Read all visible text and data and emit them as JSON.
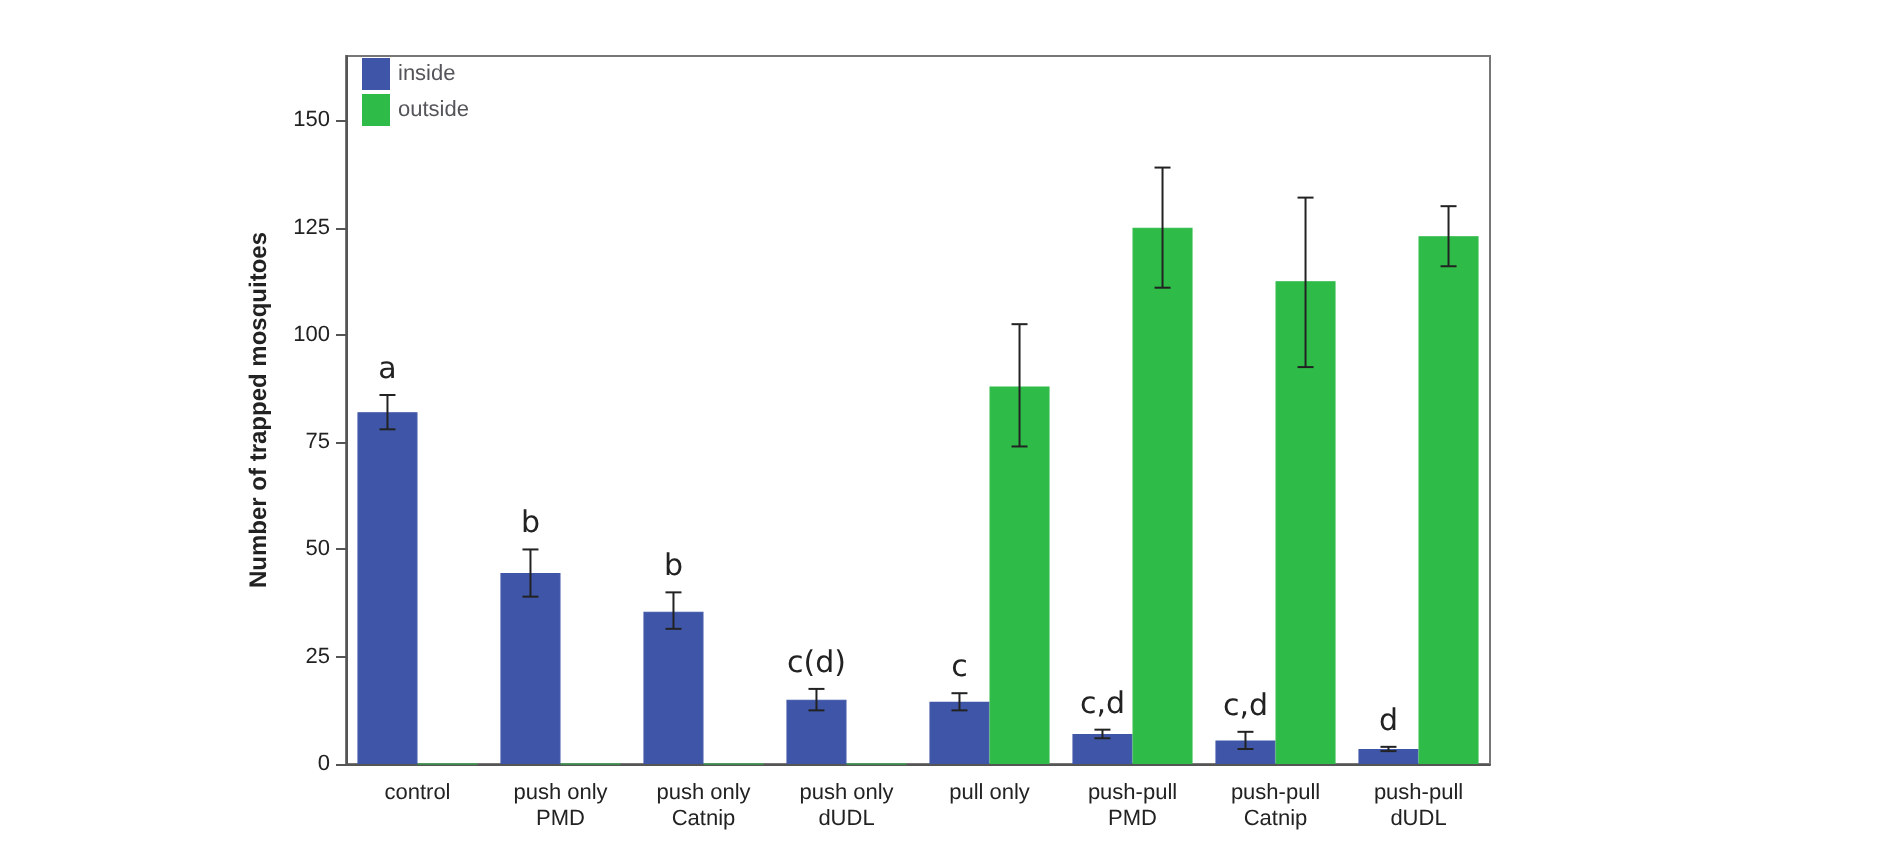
{
  "chart_data": {
    "type": "bar",
    "ylabel": "Number of trapped mosquitoes",
    "categories": [
      "control",
      "push only\nPMD",
      "push only\nCatnip",
      "push only\ndUDL",
      "pull only",
      "push-pull\nPMD",
      "push-pull\nCatnip",
      "push-pull\ndUDL"
    ],
    "series": [
      {
        "name": "inside",
        "color": "#3f56a8",
        "values": [
          82,
          44.5,
          35.5,
          15,
          14.5,
          7,
          5.5,
          3.5
        ],
        "errors": [
          [
            78,
            86
          ],
          [
            39,
            50
          ],
          [
            31.5,
            40
          ],
          [
            12.5,
            17.5
          ],
          [
            12.5,
            16.5
          ],
          [
            6,
            8
          ],
          [
            3.5,
            7.5
          ],
          [
            3,
            4
          ]
        ]
      },
      {
        "name": "outside",
        "color": "#2fbb48",
        "values": [
          0,
          0,
          0,
          0,
          88,
          125,
          112.5,
          123
        ],
        "errors": [
          null,
          null,
          null,
          null,
          [
            74,
            102.5
          ],
          [
            111,
            139
          ],
          [
            92.5,
            132
          ],
          [
            116,
            130
          ]
        ]
      }
    ],
    "annotations": [
      {
        "text": "a",
        "x": "control",
        "y": 82
      },
      {
        "text": "b",
        "x": "push only\nPMD",
        "y": 44.5
      },
      {
        "text": "b",
        "x": "push only\nCatnip",
        "y": 35.5
      },
      {
        "text": "c(d)",
        "x": "push only\ndUDL",
        "y": 15
      },
      {
        "text": "c",
        "x": "pull only",
        "y": 14.5
      },
      {
        "text": "c,d",
        "x": "push-pull\nPMD",
        "y": 7
      },
      {
        "text": "c,d",
        "x": "push-pull\nCatnip",
        "y": 5.5
      },
      {
        "text": "d",
        "x": "push-pull\ndUDL",
        "y": 3.5
      }
    ],
    "ylim": [
      0,
      165
    ],
    "yticks": [
      0,
      25,
      50,
      75,
      100,
      125,
      150
    ],
    "grid": false,
    "legend": "top left"
  }
}
